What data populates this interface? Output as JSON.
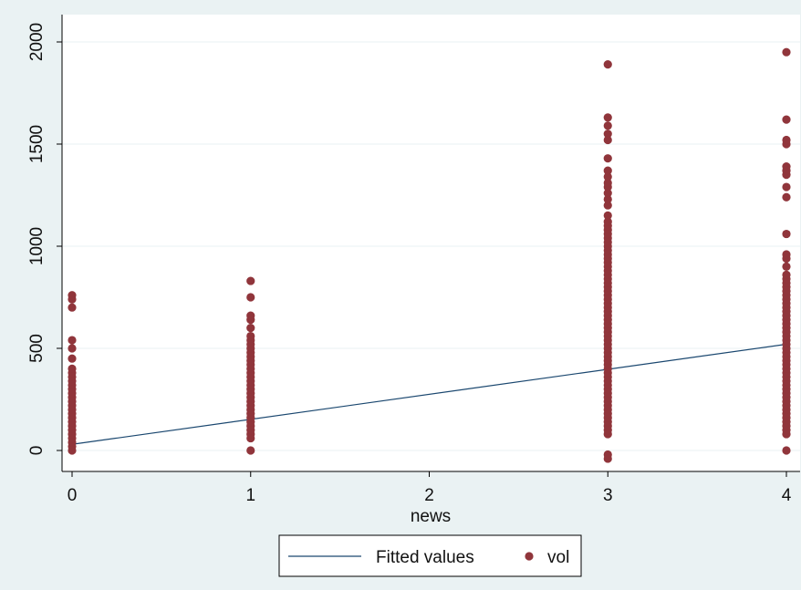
{
  "chart_data": {
    "type": "scatter",
    "title": "",
    "xlabel": "news",
    "ylabel": "",
    "xlim": [
      0,
      4
    ],
    "ylim": [
      0,
      2000
    ],
    "xticks": [
      0,
      1,
      2,
      3,
      4
    ],
    "yticks": [
      0,
      500,
      1000,
      1500,
      2000
    ],
    "grid": true,
    "legend_position": "bottom",
    "series": [
      {
        "name": "Fitted values",
        "kind": "line",
        "color": "#1a476f",
        "x": [
          0,
          4
        ],
        "y": [
          30,
          520
        ]
      },
      {
        "name": "vol",
        "kind": "scatter",
        "color": "#90353b",
        "points": [
          [
            0,
            0
          ],
          [
            0,
            20
          ],
          [
            0,
            40
          ],
          [
            0,
            60
          ],
          [
            0,
            80
          ],
          [
            0,
            100
          ],
          [
            0,
            120
          ],
          [
            0,
            140
          ],
          [
            0,
            160
          ],
          [
            0,
            180
          ],
          [
            0,
            200
          ],
          [
            0,
            220
          ],
          [
            0,
            240
          ],
          [
            0,
            260
          ],
          [
            0,
            280
          ],
          [
            0,
            300
          ],
          [
            0,
            320
          ],
          [
            0,
            340
          ],
          [
            0,
            360
          ],
          [
            0,
            380
          ],
          [
            0,
            400
          ],
          [
            0,
            450
          ],
          [
            0,
            500
          ],
          [
            0,
            540
          ],
          [
            0,
            700
          ],
          [
            0,
            740
          ],
          [
            0,
            760
          ],
          [
            1,
            0
          ],
          [
            1,
            60
          ],
          [
            1,
            80
          ],
          [
            1,
            100
          ],
          [
            1,
            120
          ],
          [
            1,
            140
          ],
          [
            1,
            160
          ],
          [
            1,
            180
          ],
          [
            1,
            200
          ],
          [
            1,
            220
          ],
          [
            1,
            240
          ],
          [
            1,
            260
          ],
          [
            1,
            280
          ],
          [
            1,
            300
          ],
          [
            1,
            320
          ],
          [
            1,
            340
          ],
          [
            1,
            360
          ],
          [
            1,
            380
          ],
          [
            1,
            400
          ],
          [
            1,
            420
          ],
          [
            1,
            440
          ],
          [
            1,
            460
          ],
          [
            1,
            480
          ],
          [
            1,
            500
          ],
          [
            1,
            520
          ],
          [
            1,
            540
          ],
          [
            1,
            560
          ],
          [
            1,
            600
          ],
          [
            1,
            640
          ],
          [
            1,
            660
          ],
          [
            1,
            750
          ],
          [
            1,
            830
          ],
          [
            3,
            -40
          ],
          [
            3,
            -20
          ],
          [
            3,
            80
          ],
          [
            3,
            100
          ],
          [
            3,
            120
          ],
          [
            3,
            140
          ],
          [
            3,
            160
          ],
          [
            3,
            180
          ],
          [
            3,
            200
          ],
          [
            3,
            220
          ],
          [
            3,
            240
          ],
          [
            3,
            260
          ],
          [
            3,
            280
          ],
          [
            3,
            300
          ],
          [
            3,
            320
          ],
          [
            3,
            340
          ],
          [
            3,
            360
          ],
          [
            3,
            380
          ],
          [
            3,
            400
          ],
          [
            3,
            420
          ],
          [
            3,
            440
          ],
          [
            3,
            460
          ],
          [
            3,
            480
          ],
          [
            3,
            500
          ],
          [
            3,
            520
          ],
          [
            3,
            540
          ],
          [
            3,
            560
          ],
          [
            3,
            580
          ],
          [
            3,
            600
          ],
          [
            3,
            620
          ],
          [
            3,
            640
          ],
          [
            3,
            660
          ],
          [
            3,
            680
          ],
          [
            3,
            700
          ],
          [
            3,
            720
          ],
          [
            3,
            740
          ],
          [
            3,
            760
          ],
          [
            3,
            780
          ],
          [
            3,
            800
          ],
          [
            3,
            820
          ],
          [
            3,
            840
          ],
          [
            3,
            860
          ],
          [
            3,
            880
          ],
          [
            3,
            900
          ],
          [
            3,
            920
          ],
          [
            3,
            940
          ],
          [
            3,
            960
          ],
          [
            3,
            980
          ],
          [
            3,
            1000
          ],
          [
            3,
            1020
          ],
          [
            3,
            1040
          ],
          [
            3,
            1060
          ],
          [
            3,
            1080
          ],
          [
            3,
            1100
          ],
          [
            3,
            1120
          ],
          [
            3,
            1150
          ],
          [
            3,
            1200
          ],
          [
            3,
            1230
          ],
          [
            3,
            1260
          ],
          [
            3,
            1290
          ],
          [
            3,
            1310
          ],
          [
            3,
            1340
          ],
          [
            3,
            1370
          ],
          [
            3,
            1430
          ],
          [
            3,
            1520
          ],
          [
            3,
            1550
          ],
          [
            3,
            1590
          ],
          [
            3,
            1630
          ],
          [
            3,
            1890
          ],
          [
            4,
            0
          ],
          [
            4,
            80
          ],
          [
            4,
            100
          ],
          [
            4,
            120
          ],
          [
            4,
            140
          ],
          [
            4,
            160
          ],
          [
            4,
            180
          ],
          [
            4,
            200
          ],
          [
            4,
            220
          ],
          [
            4,
            240
          ],
          [
            4,
            260
          ],
          [
            4,
            280
          ],
          [
            4,
            300
          ],
          [
            4,
            320
          ],
          [
            4,
            340
          ],
          [
            4,
            360
          ],
          [
            4,
            380
          ],
          [
            4,
            400
          ],
          [
            4,
            420
          ],
          [
            4,
            440
          ],
          [
            4,
            460
          ],
          [
            4,
            480
          ],
          [
            4,
            500
          ],
          [
            4,
            520
          ],
          [
            4,
            540
          ],
          [
            4,
            560
          ],
          [
            4,
            580
          ],
          [
            4,
            600
          ],
          [
            4,
            620
          ],
          [
            4,
            640
          ],
          [
            4,
            660
          ],
          [
            4,
            680
          ],
          [
            4,
            700
          ],
          [
            4,
            720
          ],
          [
            4,
            740
          ],
          [
            4,
            760
          ],
          [
            4,
            780
          ],
          [
            4,
            800
          ],
          [
            4,
            820
          ],
          [
            4,
            840
          ],
          [
            4,
            860
          ],
          [
            4,
            900
          ],
          [
            4,
            940
          ],
          [
            4,
            960
          ],
          [
            4,
            1060
          ],
          [
            4,
            1240
          ],
          [
            4,
            1290
          ],
          [
            4,
            1350
          ],
          [
            4,
            1370
          ],
          [
            4,
            1390
          ],
          [
            4,
            1500
          ],
          [
            4,
            1520
          ],
          [
            4,
            1620
          ],
          [
            4,
            1950
          ]
        ]
      }
    ]
  },
  "colors": {
    "outer_background": "#eaf2f3",
    "plot_background": "#ffffff",
    "grid": "#eaf2f3",
    "axis": "#000000",
    "fitted_line": "#1a476f",
    "marker": "#90353b"
  }
}
